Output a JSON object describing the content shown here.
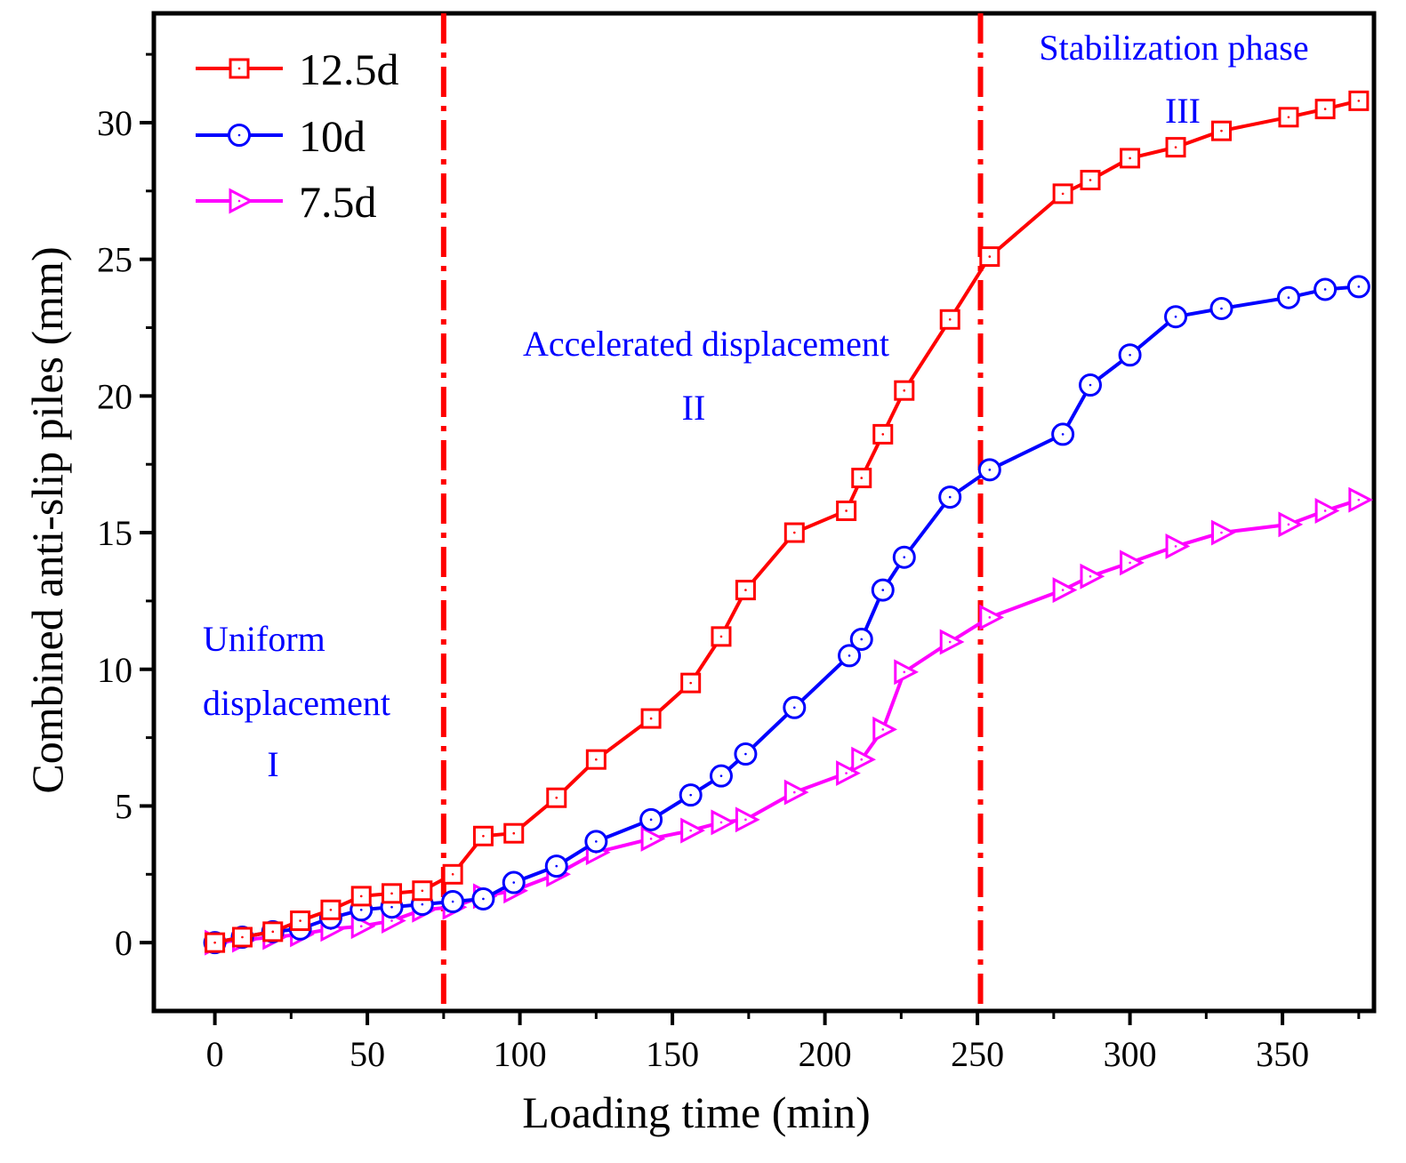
{
  "chart_data": {
    "type": "line",
    "title": "",
    "xlabel": "Loading time (min)",
    "ylabel": "Combined anti-slip piles (mm)",
    "xlim": [
      -20,
      380
    ],
    "ylim": [
      -2.5,
      34
    ],
    "xticks": [
      0,
      50,
      100,
      150,
      200,
      250,
      300,
      350
    ],
    "yticks": [
      0,
      5,
      10,
      15,
      20,
      25,
      30
    ],
    "grid": false,
    "legend_position": "top-left",
    "phase_lines_x": [
      75,
      251
    ],
    "phase_labels": [
      {
        "lines": [
          "Uniform",
          "displacement",
          "I"
        ]
      },
      {
        "lines": [
          "Accelerated displacement",
          "II"
        ]
      },
      {
        "lines": [
          "Stabilization phase",
          "III"
        ]
      }
    ],
    "series": [
      {
        "name": "12.5d",
        "color": "#ff0000",
        "marker": "square",
        "x": [
          0,
          9,
          19,
          28,
          38,
          48,
          58,
          68,
          78,
          88,
          98,
          112,
          125,
          143,
          156,
          166,
          174,
          190,
          207,
          212,
          219,
          226,
          241,
          254,
          278,
          287,
          300,
          315,
          330,
          352,
          364,
          375
        ],
        "y": [
          0,
          0.2,
          0.4,
          0.8,
          1.2,
          1.7,
          1.8,
          1.9,
          2.5,
          3.9,
          4.0,
          5.3,
          6.7,
          8.2,
          9.5,
          11.2,
          12.9,
          15.0,
          15.8,
          17.0,
          18.6,
          20.2,
          22.8,
          25.1,
          27.4,
          27.9,
          28.7,
          29.1,
          29.7,
          30.2,
          30.5,
          30.8
        ]
      },
      {
        "name": "10d",
        "color": "#0000ff",
        "marker": "circle",
        "x": [
          0,
          9,
          19,
          28,
          38,
          48,
          58,
          68,
          78,
          88,
          98,
          112,
          125,
          143,
          156,
          166,
          174,
          190,
          208,
          212,
          219,
          226,
          241,
          254,
          278,
          287,
          300,
          315,
          330,
          352,
          364,
          375
        ],
        "y": [
          0,
          0.2,
          0.4,
          0.5,
          0.9,
          1.2,
          1.3,
          1.4,
          1.5,
          1.6,
          2.2,
          2.8,
          3.7,
          4.5,
          5.4,
          6.1,
          6.9,
          8.6,
          10.5,
          11.1,
          12.9,
          14.1,
          16.3,
          17.3,
          18.6,
          20.4,
          21.5,
          22.9,
          23.2,
          23.6,
          23.9,
          24.0
        ]
      },
      {
        "name": "7.5d",
        "color": "#ff00ff",
        "marker": "triangle-right",
        "x": [
          0,
          9,
          19,
          28,
          38,
          48,
          58,
          68,
          78,
          88,
          98,
          112,
          125,
          143,
          156,
          166,
          174,
          190,
          207,
          212,
          219,
          226,
          241,
          254,
          278,
          287,
          300,
          315,
          330,
          352,
          364,
          375
        ],
        "y": [
          0,
          0.1,
          0.2,
          0.3,
          0.5,
          0.6,
          0.8,
          1.2,
          1.3,
          1.7,
          1.9,
          2.5,
          3.3,
          3.8,
          4.1,
          4.4,
          4.5,
          5.5,
          6.2,
          6.7,
          7.8,
          9.9,
          11.0,
          11.9,
          12.9,
          13.4,
          13.9,
          14.5,
          15.0,
          15.3,
          15.8,
          16.2
        ]
      }
    ]
  }
}
